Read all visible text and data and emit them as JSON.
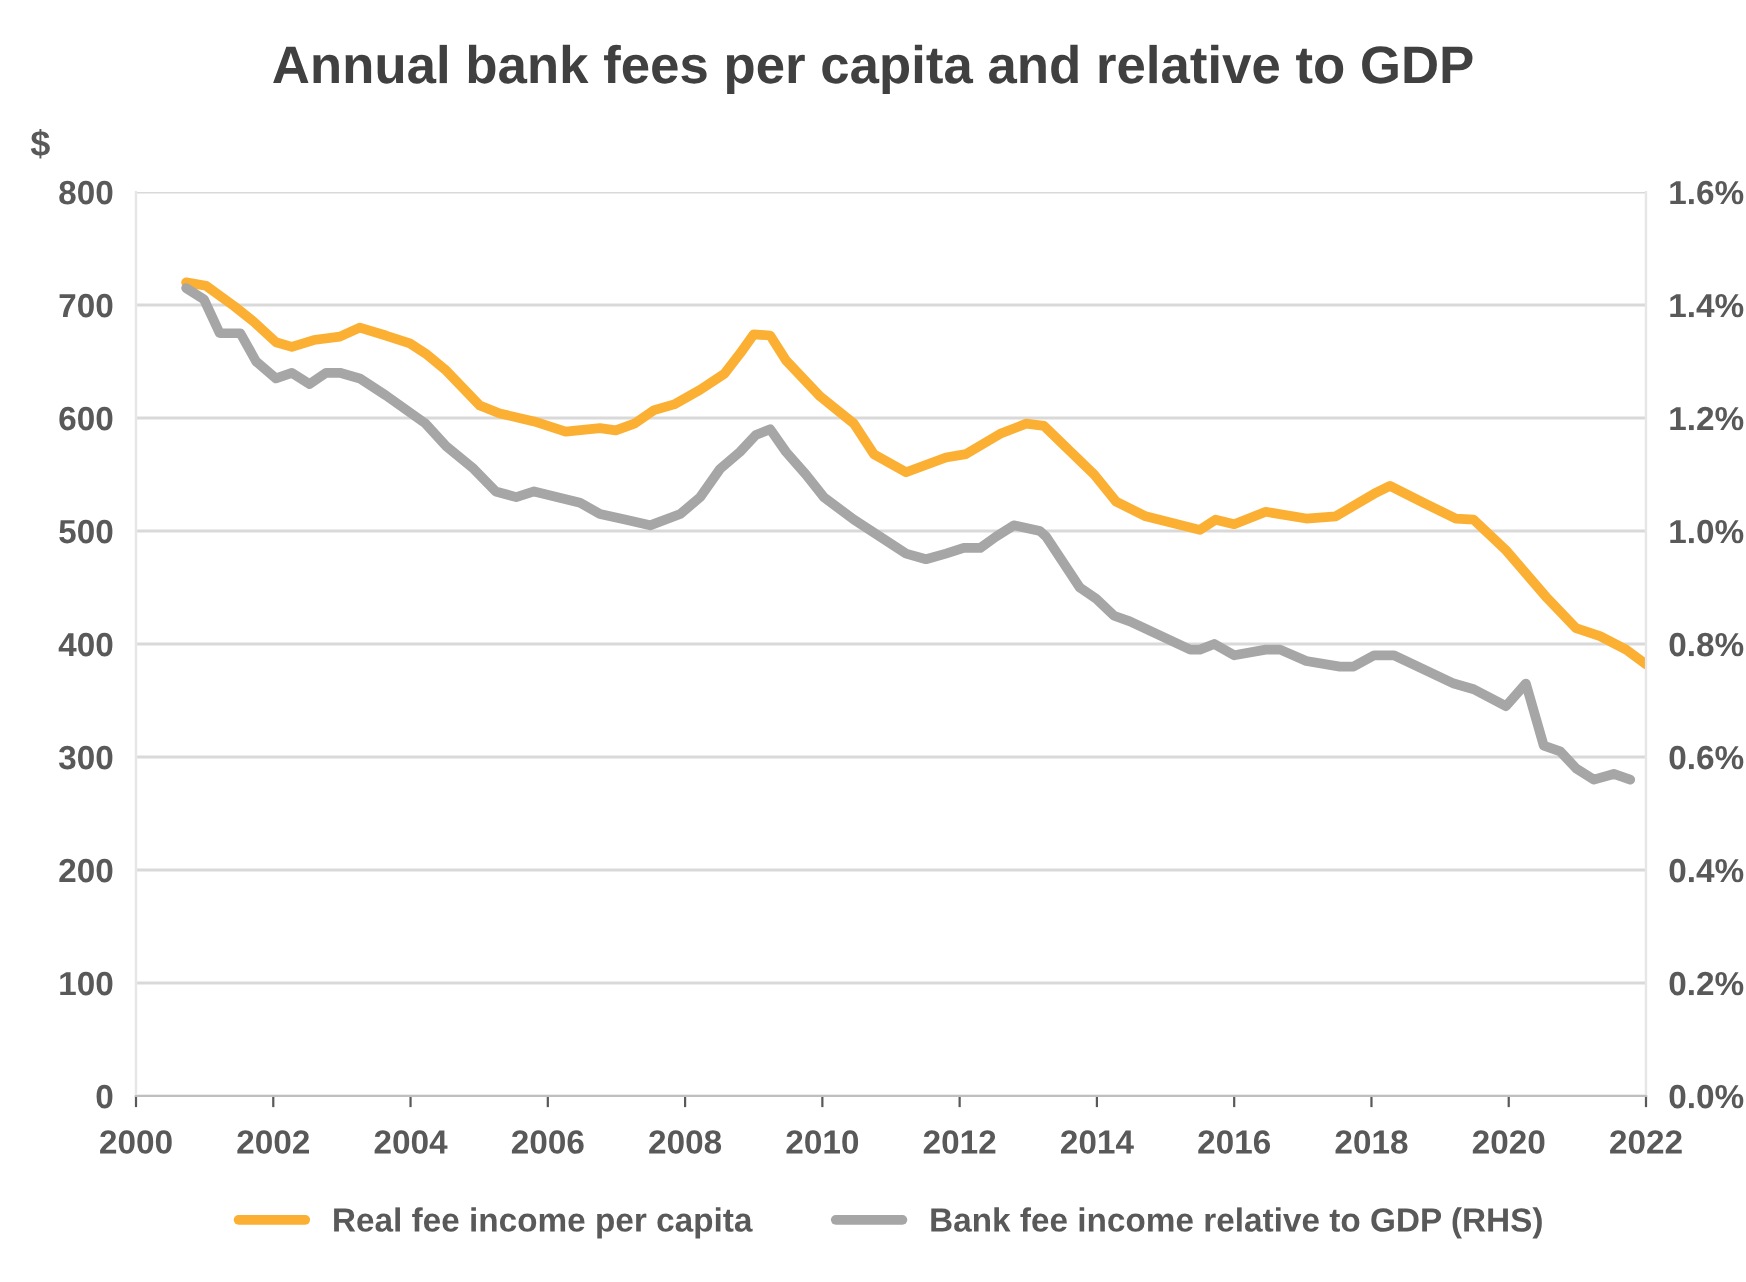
{
  "chart_data": {
    "type": "line",
    "title": "Annual bank fees per capita and relative to GDP",
    "ylabel": "$",
    "xlim": [
      2000,
      2022
    ],
    "xticks": [
      2000,
      2002,
      2004,
      2006,
      2008,
      2010,
      2012,
      2014,
      2016,
      2018,
      2020,
      2022
    ],
    "ylim": [
      0,
      800
    ],
    "yticks": [
      0,
      100,
      200,
      300,
      400,
      500,
      600,
      700,
      800
    ],
    "y2lim": [
      0,
      1.6
    ],
    "y2ticks": [
      {
        "value": 0,
        "label": "0.0%"
      },
      {
        "value": 0.2,
        "label": "0.2%"
      },
      {
        "value": 0.4,
        "label": "0.4%"
      },
      {
        "value": 0.6,
        "label": "0.6%"
      },
      {
        "value": 0.8,
        "label": "0.8%"
      },
      {
        "value": 1.0,
        "label": "1.0%"
      },
      {
        "value": 1.2,
        "label": "1.2%"
      },
      {
        "value": 1.4,
        "label": "1.4%"
      },
      {
        "value": 1.6,
        "label": "1.6%"
      }
    ],
    "grid": "y",
    "legend": "bottom",
    "marker": "none",
    "line_style": "solid",
    "series": [
      {
        "name": "Real fee income per capita",
        "color": "#fbb034",
        "x": [
          2000.73,
          2001.02,
          2001.43,
          2001.72,
          2002.04,
          2002.27,
          2002.59,
          2002.97,
          2003.26,
          2003.64,
          2003.99,
          2004.22,
          2004.52,
          2005.01,
          2005.3,
          2005.8,
          2006.26,
          2006.76,
          2006.99,
          2007.26,
          2007.55,
          2007.84,
          2008.22,
          2008.57,
          2008.8,
          2009.0,
          2009.24,
          2009.47,
          2009.97,
          2010.46,
          2010.75,
          2011.22,
          2011.8,
          2012.09,
          2012.59,
          2012.97,
          2013.23,
          2013.96,
          2014.28,
          2014.71,
          2015.5,
          2015.73,
          2016.0,
          2016.46,
          2017.05,
          2017.48,
          2018.04,
          2018.27,
          2018.79,
          2019.23,
          2019.49,
          2019.96,
          2020.54,
          2020.98,
          2021.33,
          2021.71,
          2022.0
        ],
        "values": [
          720,
          717,
          699,
          685,
          667,
          663,
          669,
          672,
          680,
          673,
          666,
          657,
          642,
          611,
          604,
          597,
          588,
          591,
          589,
          595,
          607,
          612,
          625,
          639,
          657,
          674,
          673,
          651,
          619,
          595,
          568,
          552,
          565,
          568,
          586,
          595,
          593,
          550,
          526,
          513,
          501,
          510,
          506,
          517,
          511,
          513,
          533,
          540,
          524,
          511,
          510,
          483,
          442,
          414,
          407,
          395,
          382
        ]
      },
      {
        "name": "Bank fee income relative to GDP (RHS)",
        "color": "#a6a6a6",
        "axis": "y2",
        "x": [
          2000.73,
          2000.99,
          2001.22,
          2001.52,
          2001.75,
          2002.04,
          2002.27,
          2002.53,
          2002.77,
          2002.97,
          2003.26,
          2003.64,
          2004.22,
          2004.52,
          2004.92,
          2005.24,
          2005.54,
          2005.8,
          2006.47,
          2006.76,
          2007.14,
          2007.49,
          2007.93,
          2008.22,
          2008.51,
          2008.8,
          2009.03,
          2009.24,
          2009.47,
          2009.76,
          2010.02,
          2010.46,
          2010.84,
          2011.22,
          2011.51,
          2011.8,
          2012.06,
          2012.3,
          2012.53,
          2012.79,
          2013.17,
          2013.26,
          2013.75,
          2013.99,
          2014.25,
          2014.48,
          2015.01,
          2015.36,
          2015.5,
          2015.71,
          2016.0,
          2016.46,
          2016.67,
          2017.05,
          2017.54,
          2017.74,
          2018.04,
          2018.33,
          2018.5,
          2019.2,
          2019.49,
          2019.96,
          2020.25,
          2020.51,
          2020.75,
          2020.98,
          2021.24,
          2021.53,
          2021.77
        ],
        "values": [
          1.43,
          1.41,
          1.35,
          1.35,
          1.3,
          1.27,
          1.28,
          1.26,
          1.28,
          1.28,
          1.27,
          1.24,
          1.19,
          1.15,
          1.11,
          1.07,
          1.06,
          1.07,
          1.05,
          1.03,
          1.02,
          1.01,
          1.03,
          1.06,
          1.11,
          1.14,
          1.17,
          1.18,
          1.14,
          1.1,
          1.06,
          1.02,
          0.99,
          0.96,
          0.95,
          0.96,
          0.97,
          0.97,
          0.99,
          1.01,
          1.0,
          0.99,
          0.9,
          0.88,
          0.85,
          0.84,
          0.81,
          0.79,
          0.79,
          0.8,
          0.78,
          0.79,
          0.79,
          0.77,
          0.76,
          0.76,
          0.78,
          0.78,
          0.77,
          0.73,
          0.72,
          0.69,
          0.73,
          0.62,
          0.61,
          0.58,
          0.56,
          0.57,
          0.56
        ]
      }
    ]
  }
}
